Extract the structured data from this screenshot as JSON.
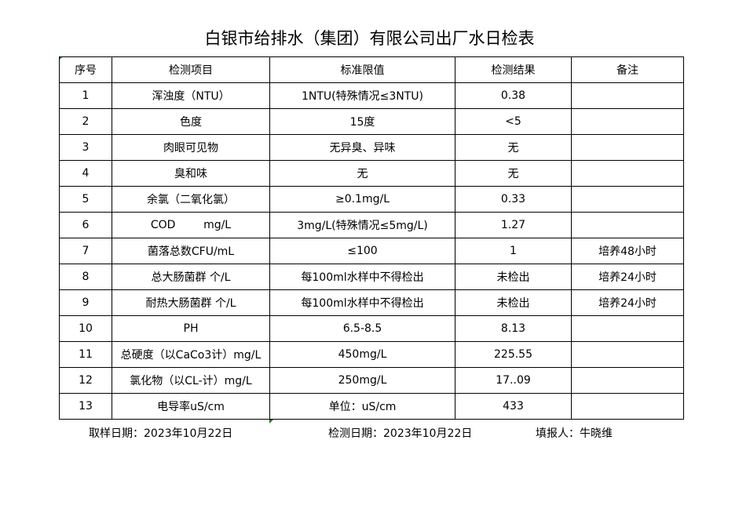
{
  "title": "白银市给排水（集团）有限公司出厂水日检表",
  "headers": [
    "序号",
    "检测项目",
    "标准限值",
    "检测结果",
    "备注"
  ],
  "rows": [
    [
      "1",
      "浑浊度（NTU）",
      "1NTU(特殊情况≤3NTU)",
      "0.38",
      ""
    ],
    [
      "2",
      "色度",
      "15度",
      "<5",
      ""
    ],
    [
      "3",
      "肉眼可见物",
      "无异臭、异味",
      "无",
      ""
    ],
    [
      "4",
      "臭和味",
      "无",
      "无",
      ""
    ],
    [
      "5",
      "余氯（二氧化氯）",
      "≥0.1mg/L",
      "0.33",
      ""
    ],
    [
      "6",
      "COD        mg/L",
      "3mg/L(特殊情况≤5mg/L)",
      "1.27",
      ""
    ],
    [
      "7",
      "菌落总数CFU/mL",
      "≤100",
      "1",
      "培养48小时"
    ],
    [
      "8",
      "总大肠菌群 个/L",
      "每100ml水样中不得检出",
      "未检出",
      "培养24小时"
    ],
    [
      "9",
      "耐热大肠菌群 个/L",
      "每100ml水样中不得检出",
      "未检出",
      "培养24小时"
    ],
    [
      "10",
      "PH",
      "6.5-8.5",
      "8.13",
      ""
    ],
    [
      "11",
      "总硬度（以CaCo3计）mg/L",
      "450mg/L",
      "225.55",
      ""
    ],
    [
      "12",
      "氯化物（以CL-计）mg/L",
      "250mg/L",
      "17..09",
      ""
    ],
    [
      "13",
      "电导率uS/cm",
      "单位：uS/cm",
      "433",
      ""
    ]
  ],
  "footer": {
    "sampling_date": "取样日期：2023年10月22日",
    "test_date": "检测日期：2023年10月22日",
    "reporter": "填报人：牛晓维"
  }
}
